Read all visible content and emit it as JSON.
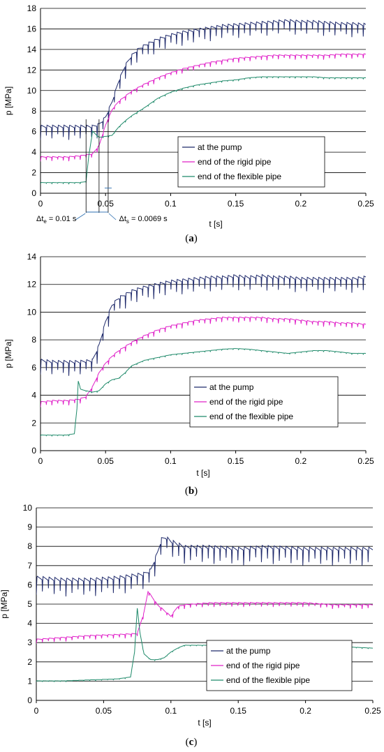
{
  "chart_data": [
    {
      "type": "line",
      "caption": "a",
      "xlabel": "t [s]",
      "ylabel": "p [MPa]",
      "xlim": [
        0,
        0.25
      ],
      "ylim": [
        0,
        18
      ],
      "xticks": [
        "0",
        "0.05",
        "0.1",
        "0.15",
        "0.2",
        "0.25"
      ],
      "yticks": [
        "0",
        "2",
        "4",
        "6",
        "8",
        "10",
        "12",
        "14",
        "16",
        "18"
      ],
      "grid": "horizontal",
      "legend_position": "lower-right",
      "series": [
        {
          "name": "at the pump",
          "color": "#1f2a6b",
          "x": [
            0,
            0.01,
            0.02,
            0.03,
            0.04,
            0.045,
            0.05,
            0.055,
            0.06,
            0.065,
            0.07,
            0.075,
            0.08,
            0.09,
            0.1,
            0.11,
            0.12,
            0.13,
            0.14,
            0.15,
            0.16,
            0.17,
            0.18,
            0.19,
            0.2,
            0.21,
            0.22,
            0.23,
            0.24,
            0.25
          ],
          "y": [
            6.1,
            6.1,
            6.1,
            6.1,
            6.1,
            6.3,
            7.0,
            8.5,
            10.5,
            12.0,
            13.0,
            13.6,
            14.0,
            14.6,
            15.0,
            15.3,
            15.5,
            15.7,
            15.9,
            16.0,
            16.1,
            16.2,
            16.3,
            16.4,
            16.3,
            16.3,
            16.2,
            16.1,
            16.1,
            16.0
          ],
          "ripple_amplitude": 0.9,
          "ripple_period": 0.00435
        },
        {
          "name": "end of the rigid pipe",
          "color": "#e020c8",
          "x": [
            0,
            0.01,
            0.02,
            0.03,
            0.04,
            0.045,
            0.05,
            0.055,
            0.06,
            0.07,
            0.08,
            0.09,
            0.1,
            0.11,
            0.12,
            0.13,
            0.14,
            0.15,
            0.16,
            0.17,
            0.18,
            0.19,
            0.2,
            0.21,
            0.22,
            0.23,
            0.24,
            0.25
          ],
          "y": [
            3.4,
            3.4,
            3.4,
            3.5,
            3.7,
            4.5,
            6.5,
            8.0,
            8.8,
            9.8,
            10.5,
            11.1,
            11.6,
            12.0,
            12.3,
            12.6,
            12.8,
            13.0,
            13.1,
            13.2,
            13.3,
            13.3,
            13.3,
            13.3,
            13.3,
            13.4,
            13.4,
            13.4
          ],
          "ripple_amplitude": 0.3,
          "ripple_period": 0.00435
        },
        {
          "name": "end of the flexible pipe",
          "color": "#1f8a6a",
          "x": [
            0,
            0.01,
            0.02,
            0.03,
            0.035,
            0.037,
            0.04,
            0.045,
            0.05,
            0.055,
            0.06,
            0.065,
            0.07,
            0.08,
            0.09,
            0.1,
            0.11,
            0.12,
            0.13,
            0.14,
            0.15,
            0.16,
            0.17,
            0.18,
            0.19,
            0.2,
            0.21,
            0.22,
            0.23,
            0.24,
            0.25
          ],
          "y": [
            1.0,
            1.0,
            1.0,
            1.0,
            1.1,
            3.5,
            6.0,
            5.4,
            5.5,
            5.6,
            6.4,
            7.0,
            7.5,
            8.3,
            9.2,
            9.8,
            10.2,
            10.5,
            10.7,
            10.9,
            11.0,
            11.2,
            11.3,
            11.3,
            11.3,
            11.3,
            11.3,
            11.2,
            11.2,
            11.2,
            11.2
          ],
          "ripple_amplitude": 0.08,
          "ripple_period": 0.00435
        }
      ],
      "annotations": [
        {
          "base": "Δt",
          "sub": "e",
          "rest": " = 0.01 s"
        },
        {
          "base": "Δt",
          "sub": "s",
          "rest": " = 0.0069 s"
        }
      ]
    },
    {
      "type": "line",
      "caption": "b",
      "xlabel": "t [s]",
      "ylabel": "p [MPa]",
      "xlim": [
        0,
        0.25
      ],
      "ylim": [
        0,
        14
      ],
      "xticks": [
        "0",
        "0.05",
        "0.1",
        "0.15",
        "0.2",
        "0.25"
      ],
      "yticks": [
        "0",
        "2",
        "4",
        "6",
        "8",
        "10",
        "12",
        "14"
      ],
      "grid": "horizontal",
      "legend_position": "lower-right",
      "series": [
        {
          "name": "at the pump",
          "color": "#1f2a6b",
          "x": [
            0,
            0.01,
            0.02,
            0.03,
            0.04,
            0.045,
            0.05,
            0.055,
            0.06,
            0.07,
            0.08,
            0.09,
            0.1,
            0.11,
            0.12,
            0.13,
            0.14,
            0.15,
            0.16,
            0.17,
            0.18,
            0.19,
            0.2,
            0.21,
            0.22,
            0.23,
            0.24,
            0.25
          ],
          "y": [
            6.2,
            6.1,
            6.1,
            6.1,
            6.2,
            7.3,
            9.0,
            10.2,
            10.7,
            11.2,
            11.5,
            11.7,
            11.9,
            12.0,
            12.1,
            12.2,
            12.2,
            12.3,
            12.2,
            12.3,
            12.2,
            12.2,
            12.1,
            12.1,
            12.1,
            12.1,
            12.1,
            12.2
          ],
          "ripple_amplitude": 0.7,
          "ripple_period": 0.00435
        },
        {
          "name": "end of the rigid pipe",
          "color": "#e020c8",
          "x": [
            0,
            0.01,
            0.02,
            0.03,
            0.035,
            0.04,
            0.045,
            0.05,
            0.055,
            0.06,
            0.07,
            0.08,
            0.09,
            0.1,
            0.11,
            0.12,
            0.13,
            0.14,
            0.15,
            0.16,
            0.17,
            0.18,
            0.19,
            0.2,
            0.21,
            0.22,
            0.23,
            0.24,
            0.25
          ],
          "y": [
            3.4,
            3.5,
            3.5,
            3.6,
            3.8,
            4.5,
            5.5,
            6.2,
            6.7,
            7.1,
            7.7,
            8.2,
            8.6,
            8.9,
            9.1,
            9.3,
            9.4,
            9.5,
            9.5,
            9.5,
            9.5,
            9.4,
            9.4,
            9.3,
            9.2,
            9.2,
            9.1,
            9.1,
            9.0
          ],
          "ripple_amplitude": 0.25,
          "ripple_period": 0.00435
        },
        {
          "name": "end of the flexible pipe",
          "color": "#1f8a6a",
          "x": [
            0,
            0.01,
            0.02,
            0.026,
            0.028,
            0.029,
            0.031,
            0.035,
            0.04,
            0.045,
            0.05,
            0.055,
            0.06,
            0.065,
            0.07,
            0.08,
            0.09,
            0.1,
            0.11,
            0.12,
            0.13,
            0.14,
            0.15,
            0.16,
            0.17,
            0.18,
            0.19,
            0.2,
            0.21,
            0.22,
            0.23,
            0.24,
            0.25
          ],
          "y": [
            1.1,
            1.1,
            1.1,
            1.2,
            3.0,
            5.0,
            4.4,
            4.3,
            4.2,
            4.3,
            4.8,
            5.1,
            5.2,
            5.6,
            6.1,
            6.5,
            6.7,
            6.9,
            7.0,
            7.1,
            7.2,
            7.3,
            7.35,
            7.3,
            7.2,
            7.1,
            7.0,
            7.1,
            7.2,
            7.2,
            7.1,
            7.0,
            7.0
          ],
          "ripple_amplitude": 0.05,
          "ripple_period": 0.00435
        }
      ]
    },
    {
      "type": "line",
      "caption": "c",
      "xlabel": "t [s]",
      "ylabel": "p [MPa]",
      "xlim": [
        0,
        0.25
      ],
      "ylim": [
        0,
        10
      ],
      "xticks": [
        "0",
        "0.05",
        "0.1",
        "0.15",
        "0.2",
        "0.25"
      ],
      "yticks": [
        "0",
        "1",
        "2",
        "3",
        "4",
        "5",
        "6",
        "7",
        "8",
        "9",
        "10"
      ],
      "grid": "horizontal",
      "legend_position": "lower-right",
      "series": [
        {
          "name": "at the pump",
          "color": "#1f2a6b",
          "x": [
            0,
            0.02,
            0.04,
            0.06,
            0.08,
            0.085,
            0.09,
            0.093,
            0.096,
            0.1,
            0.11,
            0.12,
            0.13,
            0.15,
            0.17,
            0.2,
            0.22,
            0.25
          ],
          "y": [
            6.1,
            6.0,
            6.0,
            6.1,
            6.3,
            6.5,
            7.4,
            8.1,
            8.2,
            8.0,
            7.7,
            7.7,
            7.7,
            7.6,
            7.7,
            7.6,
            7.6,
            7.6
          ],
          "ripple_amplitude": 0.6,
          "ripple_period": 0.0044
        },
        {
          "name": "end of the rigid pipe",
          "color": "#e020c8",
          "x": [
            0,
            0.02,
            0.04,
            0.06,
            0.075,
            0.08,
            0.083,
            0.086,
            0.09,
            0.095,
            0.1,
            0.105,
            0.11,
            0.13,
            0.15,
            0.17,
            0.2,
            0.22,
            0.25
          ],
          "y": [
            3.1,
            3.2,
            3.3,
            3.35,
            3.4,
            4.5,
            5.6,
            5.3,
            4.9,
            4.6,
            4.3,
            4.8,
            4.9,
            5.0,
            5.0,
            5.0,
            5.0,
            4.9,
            4.9
          ],
          "ripple_amplitude": 0.15,
          "ripple_period": 0.0044
        },
        {
          "name": "end of the flexible pipe",
          "color": "#1f8a6a",
          "x": [
            0,
            0.02,
            0.04,
            0.06,
            0.07,
            0.073,
            0.075,
            0.077,
            0.08,
            0.085,
            0.09,
            0.095,
            0.1,
            0.105,
            0.11,
            0.13,
            0.15,
            0.17,
            0.2,
            0.22,
            0.25
          ],
          "y": [
            1.0,
            1.0,
            1.05,
            1.1,
            1.2,
            2.5,
            4.8,
            3.5,
            2.4,
            2.1,
            2.1,
            2.2,
            2.5,
            2.7,
            2.85,
            2.85,
            2.9,
            2.85,
            2.8,
            2.8,
            2.7
          ],
          "ripple_amplitude": 0.03,
          "ripple_period": 0.0044
        }
      ]
    }
  ]
}
